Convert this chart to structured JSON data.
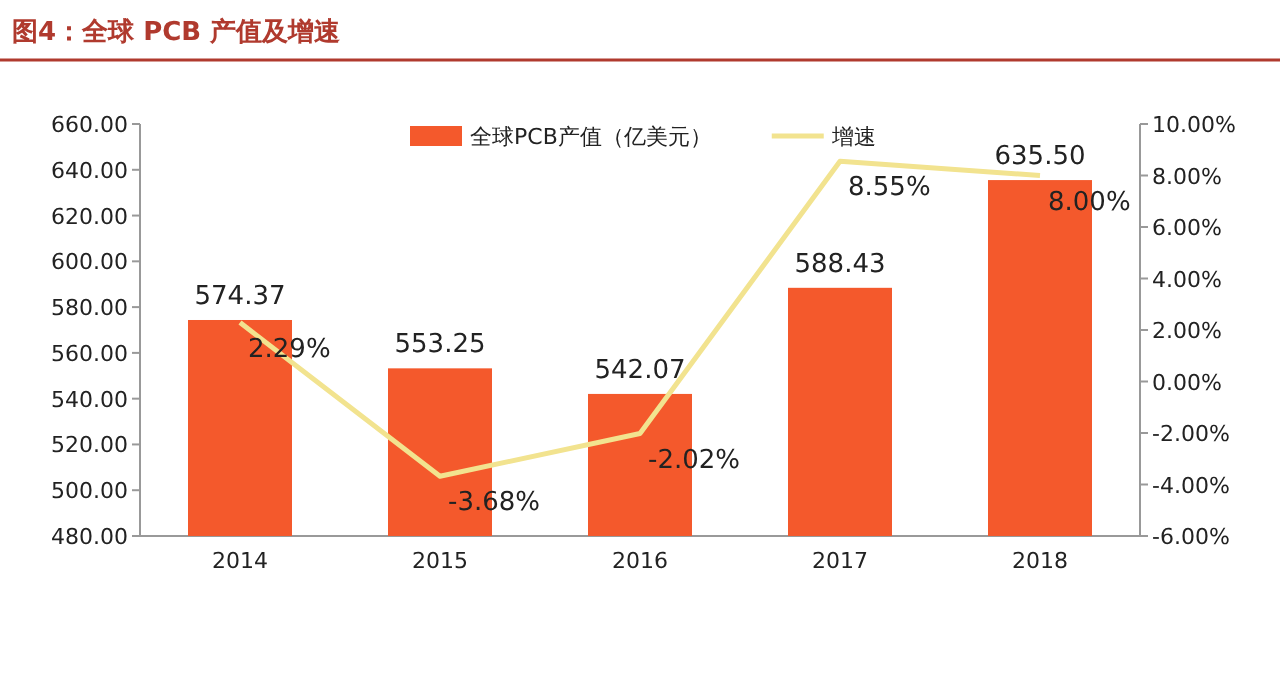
{
  "chart_data": {
    "type": "bar",
    "title": "图4：全球 PCB 产值及增速",
    "categories": [
      "2014",
      "2015",
      "2016",
      "2017",
      "2018"
    ],
    "series": [
      {
        "name": "全球PCB产值（亿美元）",
        "color": "#f4592c",
        "values": [
          574.37,
          553.25,
          542.07,
          588.43,
          635.5
        ],
        "value_labels": [
          "574.37",
          "553.25",
          "542.07",
          "588.43",
          "635.50"
        ]
      },
      {
        "name": "增速",
        "type": "line",
        "axis": "y2",
        "color": "#f2e38f",
        "values": [
          2.29,
          -3.68,
          -2.02,
          8.55,
          8.0
        ],
        "value_labels": [
          "2.29%",
          "-3.68%",
          "-2.02%",
          "8.55%",
          "8.00%"
        ]
      }
    ],
    "ylim": [
      480,
      660
    ],
    "yticks": [
      {
        "value": 480,
        "label": "480.00"
      },
      {
        "value": 500,
        "label": "500.00"
      },
      {
        "value": 520,
        "label": "520.00"
      },
      {
        "value": 540,
        "label": "540.00"
      },
      {
        "value": 560,
        "label": "560.00"
      },
      {
        "value": 580,
        "label": "580.00"
      },
      {
        "value": 600,
        "label": "600.00"
      },
      {
        "value": 620,
        "label": "620.00"
      },
      {
        "value": 640,
        "label": "640.00"
      },
      {
        "value": 660,
        "label": "660.00"
      }
    ],
    "y2lim": [
      -6,
      10
    ],
    "y2ticks": [
      {
        "value": -6,
        "label": "-6.00%"
      },
      {
        "value": -4,
        "label": "-4.00%"
      },
      {
        "value": -2,
        "label": "-2.00%"
      },
      {
        "value": 0,
        "label": "0.00%"
      },
      {
        "value": 2,
        "label": "2.00%"
      },
      {
        "value": 4,
        "label": "4.00%"
      },
      {
        "value": 6,
        "label": "6.00%"
      },
      {
        "value": 8,
        "label": "8.00%"
      },
      {
        "value": 10,
        "label": "10.00%"
      }
    ],
    "legend": "top"
  }
}
